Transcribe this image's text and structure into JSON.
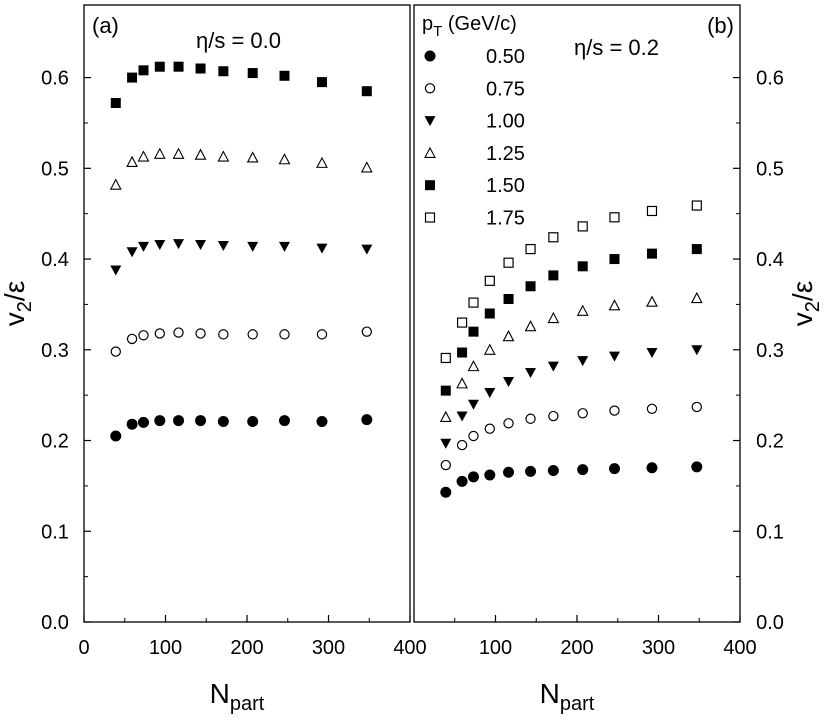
{
  "chart_data": [
    {
      "type": "scatter",
      "panel_label": "(a)",
      "annotation": "η/s = 0.0",
      "xlabel": "N",
      "xlabel_sub": "part",
      "ylabel": "v",
      "ylabel_sub": "2",
      "ylabel_suffix": "/ε",
      "xlim": [
        0,
        400
      ],
      "ylim": [
        0.0,
        0.68
      ],
      "xticks": [
        0,
        100,
        200,
        300,
        400
      ],
      "xtick_labels": [
        "0",
        "100",
        "200",
        "300",
        "400"
      ],
      "yticks": [
        0.0,
        0.1,
        0.2,
        0.3,
        0.4,
        0.5,
        0.6
      ],
      "ytick_labels": [
        "0.0",
        "0.1",
        "0.2",
        "0.3",
        "0.4",
        "0.5",
        "0.6"
      ],
      "yaxis_side": "left",
      "series": [
        {
          "name": "0.50",
          "marker": "filled-circle",
          "x": [
            39,
            59,
            73,
            93,
            116,
            143,
            171,
            207,
            246,
            292,
            347
          ],
          "y": [
            0.205,
            0.218,
            0.22,
            0.222,
            0.222,
            0.222,
            0.221,
            0.221,
            0.222,
            0.221,
            0.223
          ]
        },
        {
          "name": "0.75",
          "marker": "open-circle",
          "x": [
            39,
            59,
            73,
            93,
            116,
            143,
            171,
            207,
            246,
            292,
            347
          ],
          "y": [
            0.298,
            0.312,
            0.316,
            0.318,
            0.319,
            0.318,
            0.317,
            0.317,
            0.317,
            0.317,
            0.32
          ]
        },
        {
          "name": "1.00",
          "marker": "filled-triangle-down",
          "x": [
            39,
            59,
            73,
            93,
            116,
            143,
            171,
            207,
            246,
            292,
            347
          ],
          "y": [
            0.388,
            0.408,
            0.414,
            0.416,
            0.417,
            0.416,
            0.415,
            0.414,
            0.414,
            0.412,
            0.411
          ]
        },
        {
          "name": "1.25",
          "marker": "open-triangle-up",
          "x": [
            39,
            59,
            73,
            93,
            116,
            143,
            171,
            207,
            246,
            292,
            347
          ],
          "y": [
            0.482,
            0.507,
            0.513,
            0.516,
            0.516,
            0.515,
            0.513,
            0.512,
            0.51,
            0.506,
            0.501
          ]
        },
        {
          "name": "1.50",
          "marker": "filled-square",
          "x": [
            39,
            59,
            73,
            93,
            116,
            143,
            171,
            207,
            246,
            292,
            347
          ],
          "y": [
            0.572,
            0.6,
            0.608,
            0.612,
            0.612,
            0.61,
            0.607,
            0.605,
            0.602,
            0.595,
            0.585
          ]
        }
      ]
    },
    {
      "type": "scatter",
      "panel_label": "(b)",
      "annotation": "η/s = 0.2",
      "legend_title": "p",
      "legend_title_sub": "T",
      "legend_title_suffix": " (GeV/c)",
      "legend_placement": "top-left",
      "xlabel": "N",
      "xlabel_sub": "part",
      "ylabel": "v",
      "ylabel_sub": "2",
      "ylabel_suffix": "/ε",
      "xlim": [
        0,
        400
      ],
      "ylim": [
        0.0,
        0.68
      ],
      "xticks": [
        100,
        200,
        300,
        400
      ],
      "xtick_labels": [
        "100",
        "200",
        "300",
        "400"
      ],
      "yticks": [
        0.0,
        0.1,
        0.2,
        0.3,
        0.4,
        0.5,
        0.6
      ],
      "ytick_labels": [
        "0.0",
        "0.1",
        "0.2",
        "0.3",
        "0.4",
        "0.5",
        "0.6"
      ],
      "yaxis_side": "right",
      "series": [
        {
          "name": "0.50",
          "marker": "filled-circle",
          "x": [
            39,
            59,
            73,
            93,
            116,
            143,
            171,
            207,
            246,
            292,
            347
          ],
          "y": [
            0.143,
            0.155,
            0.16,
            0.162,
            0.165,
            0.166,
            0.167,
            0.168,
            0.169,
            0.17,
            0.171
          ]
        },
        {
          "name": "0.75",
          "marker": "open-circle",
          "x": [
            39,
            59,
            73,
            93,
            116,
            143,
            171,
            207,
            246,
            292,
            347
          ],
          "y": [
            0.173,
            0.195,
            0.205,
            0.213,
            0.219,
            0.224,
            0.227,
            0.23,
            0.233,
            0.235,
            0.237
          ]
        },
        {
          "name": "1.00",
          "marker": "filled-triangle-down",
          "x": [
            39,
            59,
            73,
            93,
            116,
            143,
            171,
            207,
            246,
            292,
            347
          ],
          "y": [
            0.197,
            0.227,
            0.24,
            0.253,
            0.265,
            0.275,
            0.282,
            0.288,
            0.293,
            0.297,
            0.3
          ]
        },
        {
          "name": "1.25",
          "marker": "open-triangle-up",
          "x": [
            39,
            59,
            73,
            93,
            116,
            143,
            171,
            207,
            246,
            292,
            347
          ],
          "y": [
            0.226,
            0.263,
            0.282,
            0.3,
            0.315,
            0.326,
            0.335,
            0.343,
            0.349,
            0.353,
            0.357
          ]
        },
        {
          "name": "1.50",
          "marker": "filled-square",
          "x": [
            39,
            59,
            73,
            93,
            116,
            143,
            171,
            207,
            246,
            292,
            347
          ],
          "y": [
            0.255,
            0.297,
            0.32,
            0.34,
            0.356,
            0.37,
            0.382,
            0.392,
            0.4,
            0.406,
            0.411
          ]
        },
        {
          "name": "1.75",
          "marker": "open-square",
          "x": [
            39,
            59,
            73,
            93,
            116,
            143,
            171,
            207,
            246,
            292,
            347
          ],
          "y": [
            0.291,
            0.33,
            0.352,
            0.376,
            0.396,
            0.411,
            0.424,
            0.436,
            0.446,
            0.453,
            0.459
          ]
        }
      ]
    }
  ]
}
